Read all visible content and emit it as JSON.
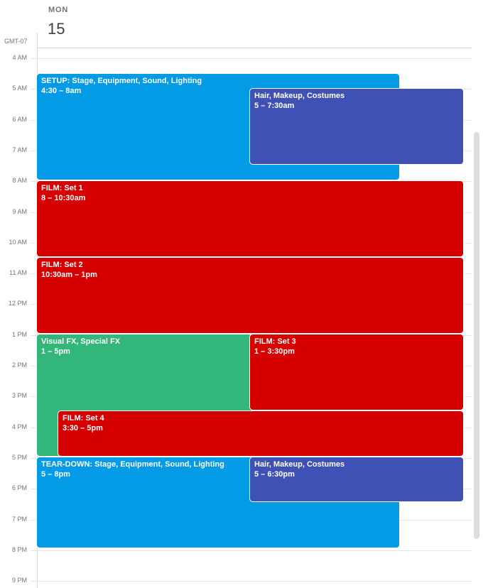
{
  "header": {
    "day_name": "MON",
    "day_number": "15",
    "timezone": "GMT-07"
  },
  "hours": [
    "4 AM",
    "5 AM",
    "6 AM",
    "7 AM",
    "8 AM",
    "9 AM",
    "10 AM",
    "11 AM",
    "12 PM",
    "1 PM",
    "2 PM",
    "3 PM",
    "4 PM",
    "5 PM",
    "6 PM",
    "7 PM",
    "8 PM",
    "9 PM"
  ],
  "colors": {
    "blue": "#039be5",
    "indigo": "#3f51b5",
    "red": "#d50000",
    "green": "#33b679"
  },
  "events": [
    {
      "title": "SETUP: Stage, Equipment, Sound, Lighting",
      "time": "4:30 – 8am",
      "color": "#039be5"
    },
    {
      "title": "Hair, Makeup, Costumes",
      "time": "5 – 7:30am",
      "color": "#3f51b5"
    },
    {
      "title": "FILM: Set 1",
      "time": "8 – 10:30am",
      "color": "#d50000"
    },
    {
      "title": "FILM: Set 2",
      "time": "10:30am – 1pm",
      "color": "#d50000"
    },
    {
      "title": "Visual FX, Special FX",
      "time": "1 – 5pm",
      "color": "#33b679"
    },
    {
      "title": "FILM: Set 3",
      "time": "1 – 3:30pm",
      "color": "#d50000"
    },
    {
      "title": "FILM: Set 4",
      "time": "3:30 – 5pm",
      "color": "#d50000"
    },
    {
      "title": "TEAR-DOWN: Stage, Equipment, Sound, Lighting",
      "time": "5 – 8pm",
      "color": "#039be5"
    },
    {
      "title": "Hair, Makeup, Costumes",
      "time": "5 – 6:30pm",
      "color": "#3f51b5"
    }
  ]
}
